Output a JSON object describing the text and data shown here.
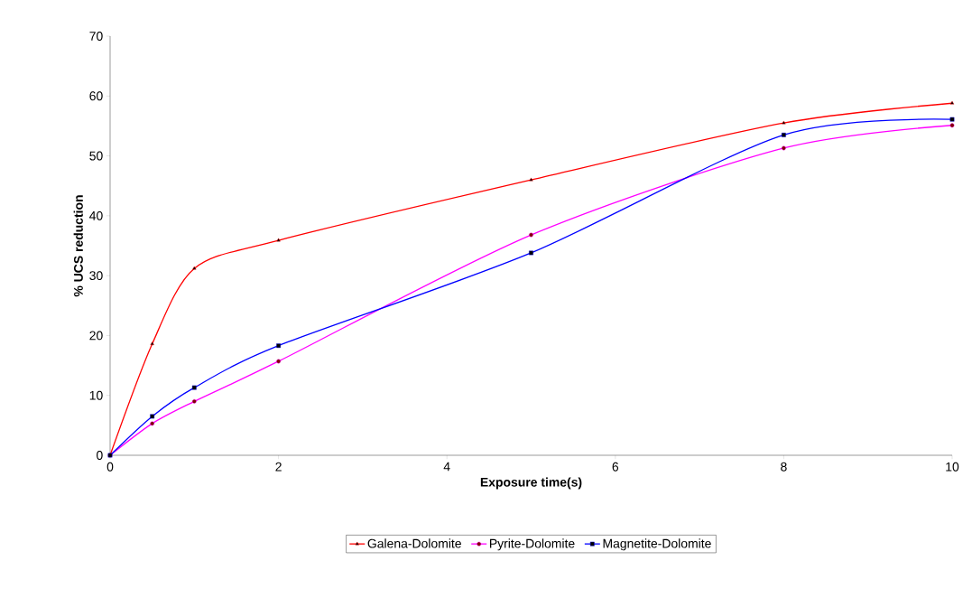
{
  "chart_data": {
    "type": "line",
    "xlabel": "Exposure time(s)",
    "ylabel": "% UCS reduction",
    "x": [
      0,
      0.5,
      1,
      2,
      5,
      8,
      10
    ],
    "series": [
      {
        "name": "Galena-Dolomite",
        "color": "#ff0000",
        "marker": "triangle",
        "values": [
          0,
          18.6,
          31.2,
          35.9,
          46.0,
          55.5,
          58.8
        ]
      },
      {
        "name": "Pyrite-Dolomite",
        "color": "#ff00ff",
        "marker": "circle",
        "values": [
          0,
          5.3,
          9.0,
          15.7,
          36.8,
          51.3,
          55.1
        ]
      },
      {
        "name": "Magnetite-Dolomite",
        "color": "#0000ff",
        "marker": "square",
        "values": [
          0,
          6.5,
          11.3,
          18.3,
          33.8,
          53.5,
          56.1
        ]
      }
    ],
    "xlim": [
      0,
      10
    ],
    "xticks": [
      0,
      2,
      4,
      6,
      8,
      10
    ],
    "ylim": [
      0,
      70
    ],
    "yticks": [
      0,
      10,
      20,
      30,
      40,
      50,
      60,
      70
    ],
    "grid": false,
    "legend": "bottom"
  }
}
